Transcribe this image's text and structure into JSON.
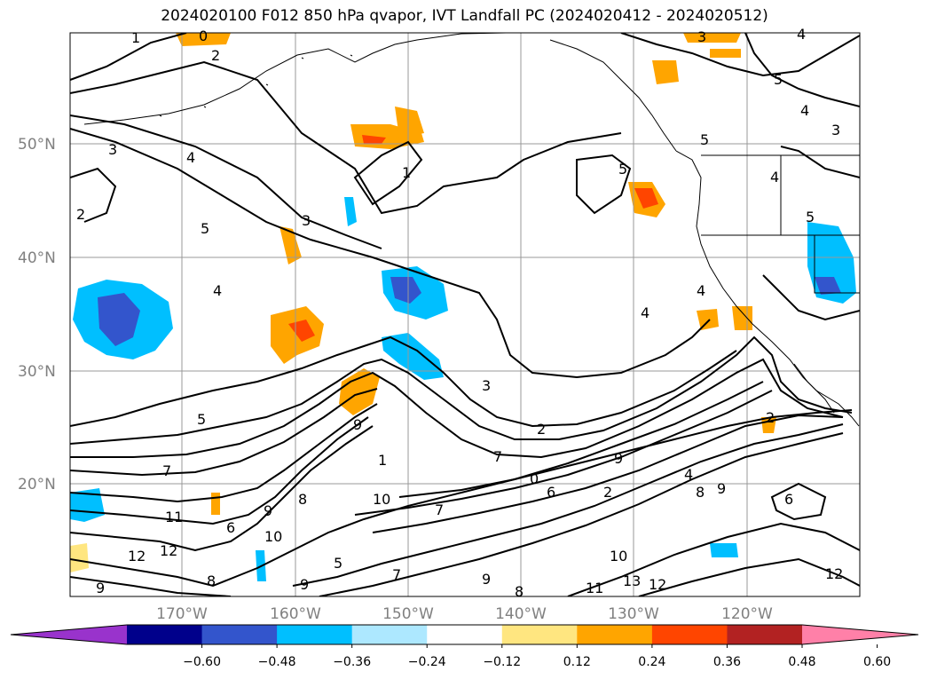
{
  "title": "2024020100 F012 850 hPa qvapor, IVT Landfall PC (2024020412 - 2024020512)",
  "map": {
    "lat_labels": [
      "50°N",
      "40°N",
      "30°N",
      "20°N"
    ],
    "lon_labels": [
      "170°W",
      "160°W",
      "150°W",
      "140°W",
      "130°W",
      "120°W"
    ],
    "contour_labels": [
      "1",
      "0",
      "2",
      "3",
      "4",
      "2",
      "5",
      "3",
      "4",
      "3",
      "4",
      "4",
      "3",
      "5",
      "4",
      "5",
      "5",
      "5",
      "4",
      "4",
      "5",
      "3",
      "2",
      "1",
      "0",
      "7",
      "10",
      "7",
      "9",
      "11",
      "12",
      "12",
      "9",
      "6",
      "8",
      "9",
      "10",
      "5",
      "7",
      "8",
      "9",
      "8",
      "9",
      "10",
      "11",
      "13",
      "12",
      "12",
      "6",
      "8",
      "9",
      "2",
      "9",
      "7",
      "2",
      "4",
      "6",
      "1"
    ]
  },
  "colorbar": {
    "colors": [
      "#9933cc",
      "#00008b",
      "#3355cc",
      "#00bfff",
      "#ade8ff",
      "#ffffff",
      "#ffe680",
      "#ffa500",
      "#ff4500",
      "#b22222",
      "#ff80a8"
    ],
    "ticks": [
      "−0.60",
      "−0.48",
      "−0.36",
      "−0.24",
      "−0.12",
      "0.12",
      "0.24",
      "0.36",
      "0.48",
      "0.60"
    ]
  }
}
